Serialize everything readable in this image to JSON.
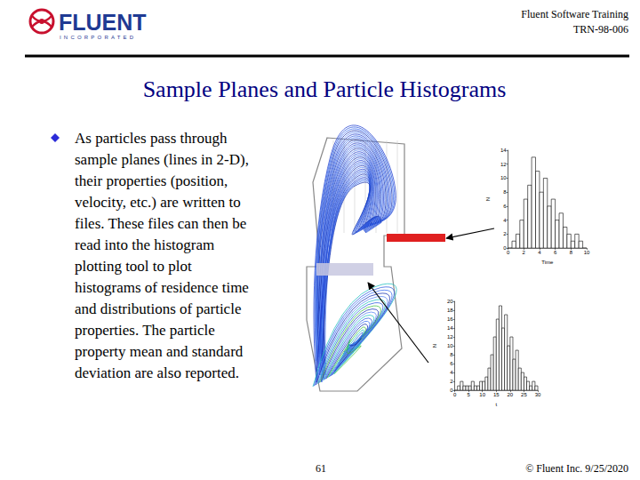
{
  "header": {
    "company": "FLUENT",
    "company_sub": "INCORPORATED",
    "course": "Fluent Software Training",
    "code": "TRN-98-006"
  },
  "title": "Sample Planes and Particle Histograms",
  "bullet_lines": [
    "As particles pass through",
    "sample planes (lines in 2-D),",
    "their properties (position,",
    "velocity, etc.) are written to",
    "files.  These files can then be",
    "read into the histogram",
    "plotting tool to plot",
    "histograms of residence time",
    "and distributions of particle",
    "properties.  The particle",
    "property mean and standard",
    "deviation are also reported."
  ],
  "chart_data": [
    {
      "type": "histogram",
      "x_label": "Time",
      "y_label": "N",
      "color": "#ffffff",
      "grid": false,
      "bins": [
        0,
        0.5,
        1,
        1.5,
        2,
        2.5,
        3,
        3.5,
        4,
        4.5,
        5,
        5.5,
        6,
        6.5,
        7,
        7.5,
        8,
        8.5,
        9,
        9.5,
        10
      ],
      "values": [
        0,
        1,
        2,
        4,
        7,
        9,
        13,
        11,
        8,
        10,
        6,
        7,
        4,
        5,
        3,
        2,
        1,
        2,
        1,
        0
      ],
      "xlim": [
        0,
        10
      ],
      "xticks": [
        0,
        2,
        4,
        6,
        8,
        10
      ],
      "ylim": [
        0,
        14
      ],
      "yticks": [
        0,
        2,
        4,
        6,
        8,
        10,
        12,
        14
      ]
    },
    {
      "type": "histogram",
      "x_label": "t",
      "y_label": "N",
      "color": "#ffffff",
      "grid": false,
      "bins": [
        0,
        1,
        2,
        3,
        4,
        5,
        6,
        7,
        8,
        9,
        10,
        11,
        12,
        13,
        14,
        15,
        16,
        17,
        18,
        19,
        20,
        21,
        22,
        23,
        24,
        25,
        26,
        27,
        28,
        29,
        30
      ],
      "values": [
        0,
        1,
        2,
        1,
        1,
        1,
        2,
        1,
        1,
        2,
        2,
        3,
        5,
        8,
        12,
        16,
        19,
        14,
        17,
        10,
        12,
        7,
        9,
        5,
        4,
        3,
        2,
        1,
        2,
        1
      ],
      "xlim": [
        0,
        30
      ],
      "xticks": [
        0,
        5,
        10,
        15,
        20,
        25,
        30
      ],
      "ylim": [
        0,
        20
      ],
      "yticks": [
        0,
        2,
        4,
        6,
        8,
        10,
        12,
        14,
        16,
        18,
        20
      ]
    }
  ],
  "footer": {
    "page": "61",
    "copyright": "© Fluent Inc. 9/25/2020"
  }
}
